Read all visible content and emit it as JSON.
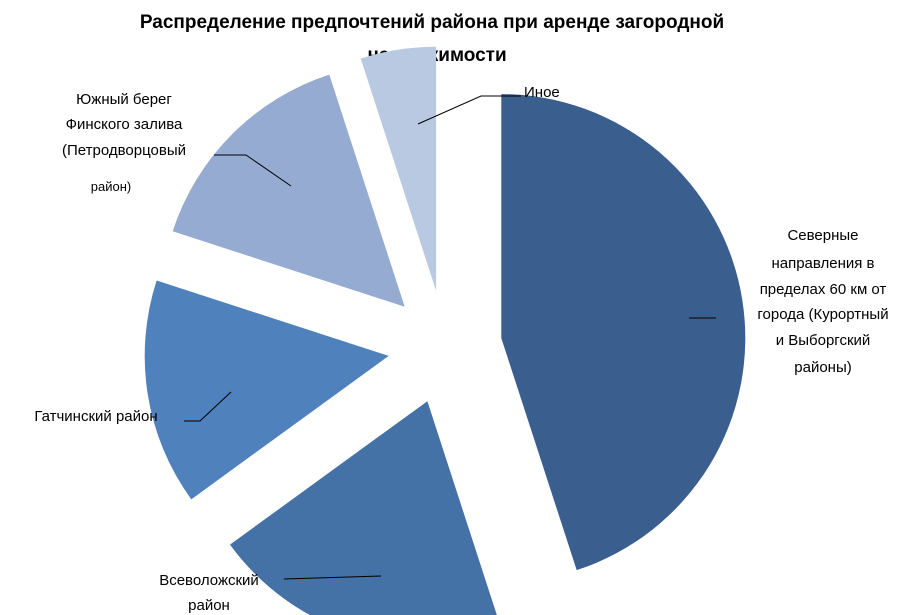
{
  "chart_data": {
    "type": "pie",
    "exploded": true,
    "title": "Распределение предпочтений района  при аренде загородной недвижимости",
    "title_lines": [
      "Распределение предпочтений района  при аренде загородной",
      "недвижимости"
    ],
    "slices": [
      {
        "label": "Северные направления в пределах 60 км от города (Курортный и Выборгский районы)",
        "label_lines": [
          "Северные",
          "направления в",
          "пределах 60 км от",
          "города (Курортный",
          "и Выборгский",
          "районы)"
        ],
        "value": 45,
        "color": "#3a5f8e"
      },
      {
        "label": "Всеволожский район",
        "label_lines": [
          "Всеволожский",
          "район"
        ],
        "value": 20,
        "color": "#4471a6"
      },
      {
        "label": "Гатчинский район",
        "label_lines": [
          "Гатчинский район"
        ],
        "value": 15,
        "color": "#4f81bd"
      },
      {
        "label": "Южный берег Финского залива (Петродворцовый район)",
        "label_lines": [
          "Южный берег",
          "Финского залива",
          "(Петродворцовый",
          "район)"
        ],
        "value": 15,
        "color": "#95abd1"
      },
      {
        "label": "Иное",
        "label_lines": [
          "Иное"
        ],
        "value": 5,
        "color": "#b9c9e2"
      }
    ]
  }
}
